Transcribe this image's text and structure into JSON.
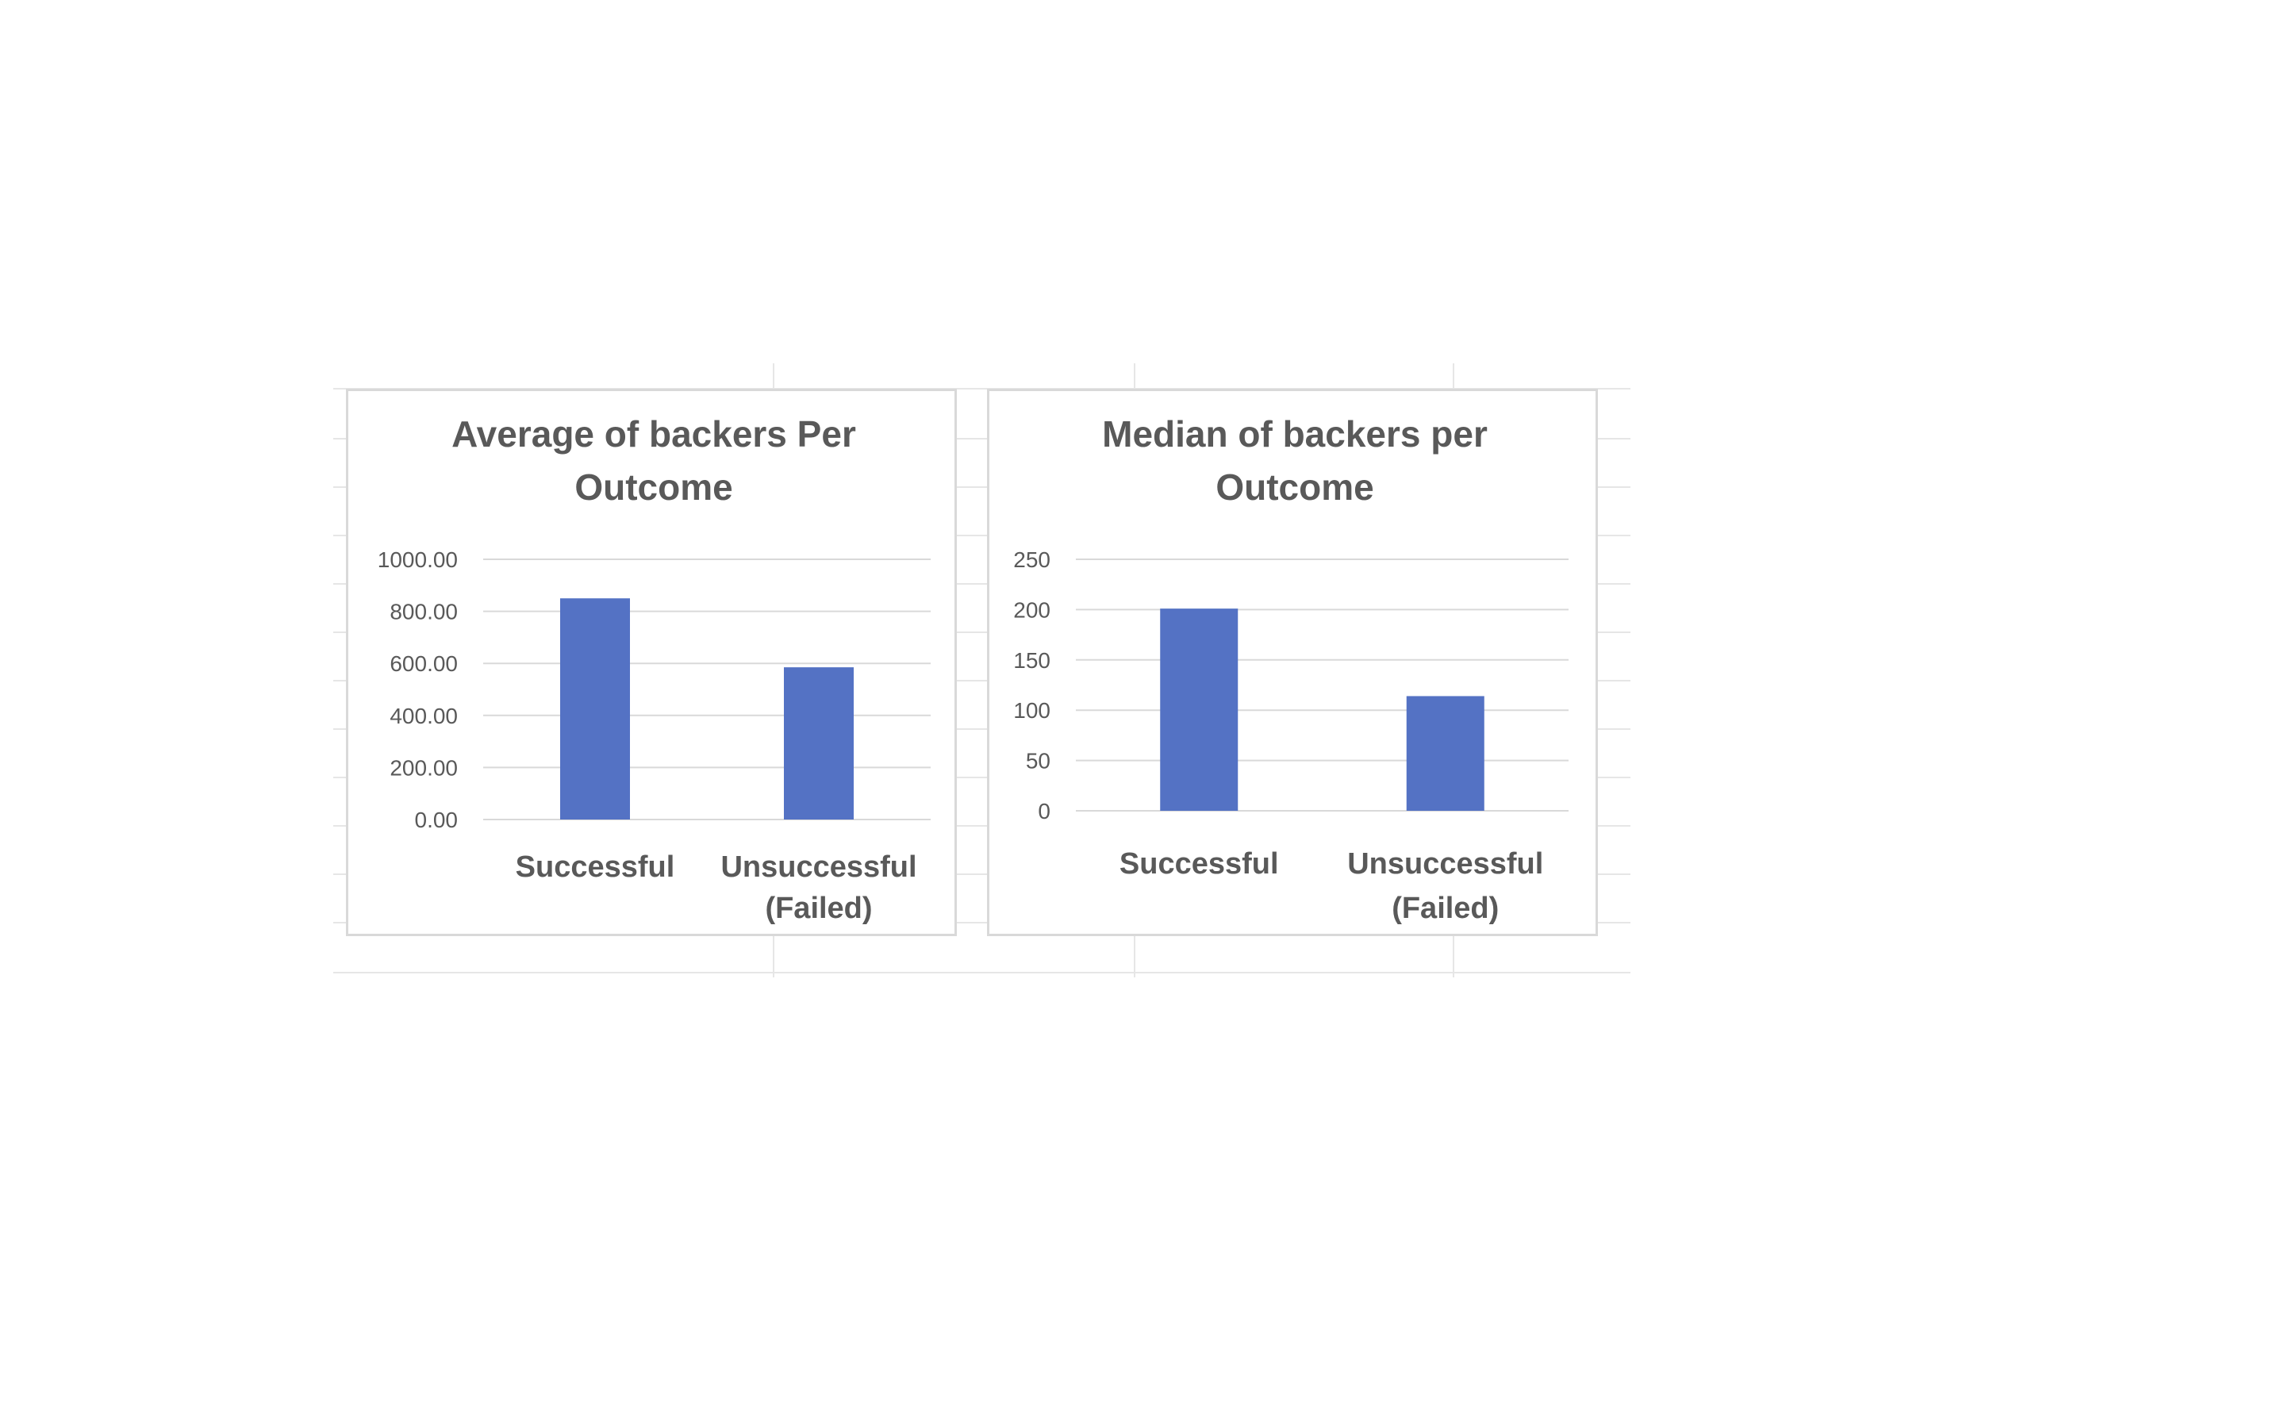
{
  "colors": {
    "bar": "#5472c4",
    "text": "#595959",
    "gridline": "#d9d9d9",
    "sheet_gridline": "#e6e6e6",
    "chart_border": "#d9d9d9"
  },
  "chart_data": [
    {
      "type": "bar",
      "title_lines": [
        "Average of backers Per",
        "Outcome"
      ],
      "categories": [
        [
          "Successful"
        ],
        [
          "Unsuccessful",
          "(Failed)"
        ]
      ],
      "values": [
        850,
        585
      ],
      "ylim": [
        0,
        1000
      ],
      "yticks": [
        0,
        200,
        400,
        600,
        800,
        1000
      ],
      "ytick_labels": [
        "0.00",
        "200.00",
        "400.00",
        "600.00",
        "800.00",
        "1000.00"
      ],
      "xlabel": "",
      "ylabel": "",
      "grid": true,
      "legend": "none"
    },
    {
      "type": "bar",
      "title_lines": [
        "Median of backers per",
        "Outcome"
      ],
      "categories": [
        [
          "Successful"
        ],
        [
          "Unsuccessful",
          "(Failed)"
        ]
      ],
      "values": [
        201,
        114
      ],
      "ylim": [
        0,
        250
      ],
      "yticks": [
        0,
        50,
        100,
        150,
        200,
        250
      ],
      "ytick_labels": [
        "0",
        "50",
        "100",
        "150",
        "200",
        "250"
      ],
      "xlabel": "",
      "ylabel": "",
      "grid": true,
      "legend": "none"
    }
  ]
}
